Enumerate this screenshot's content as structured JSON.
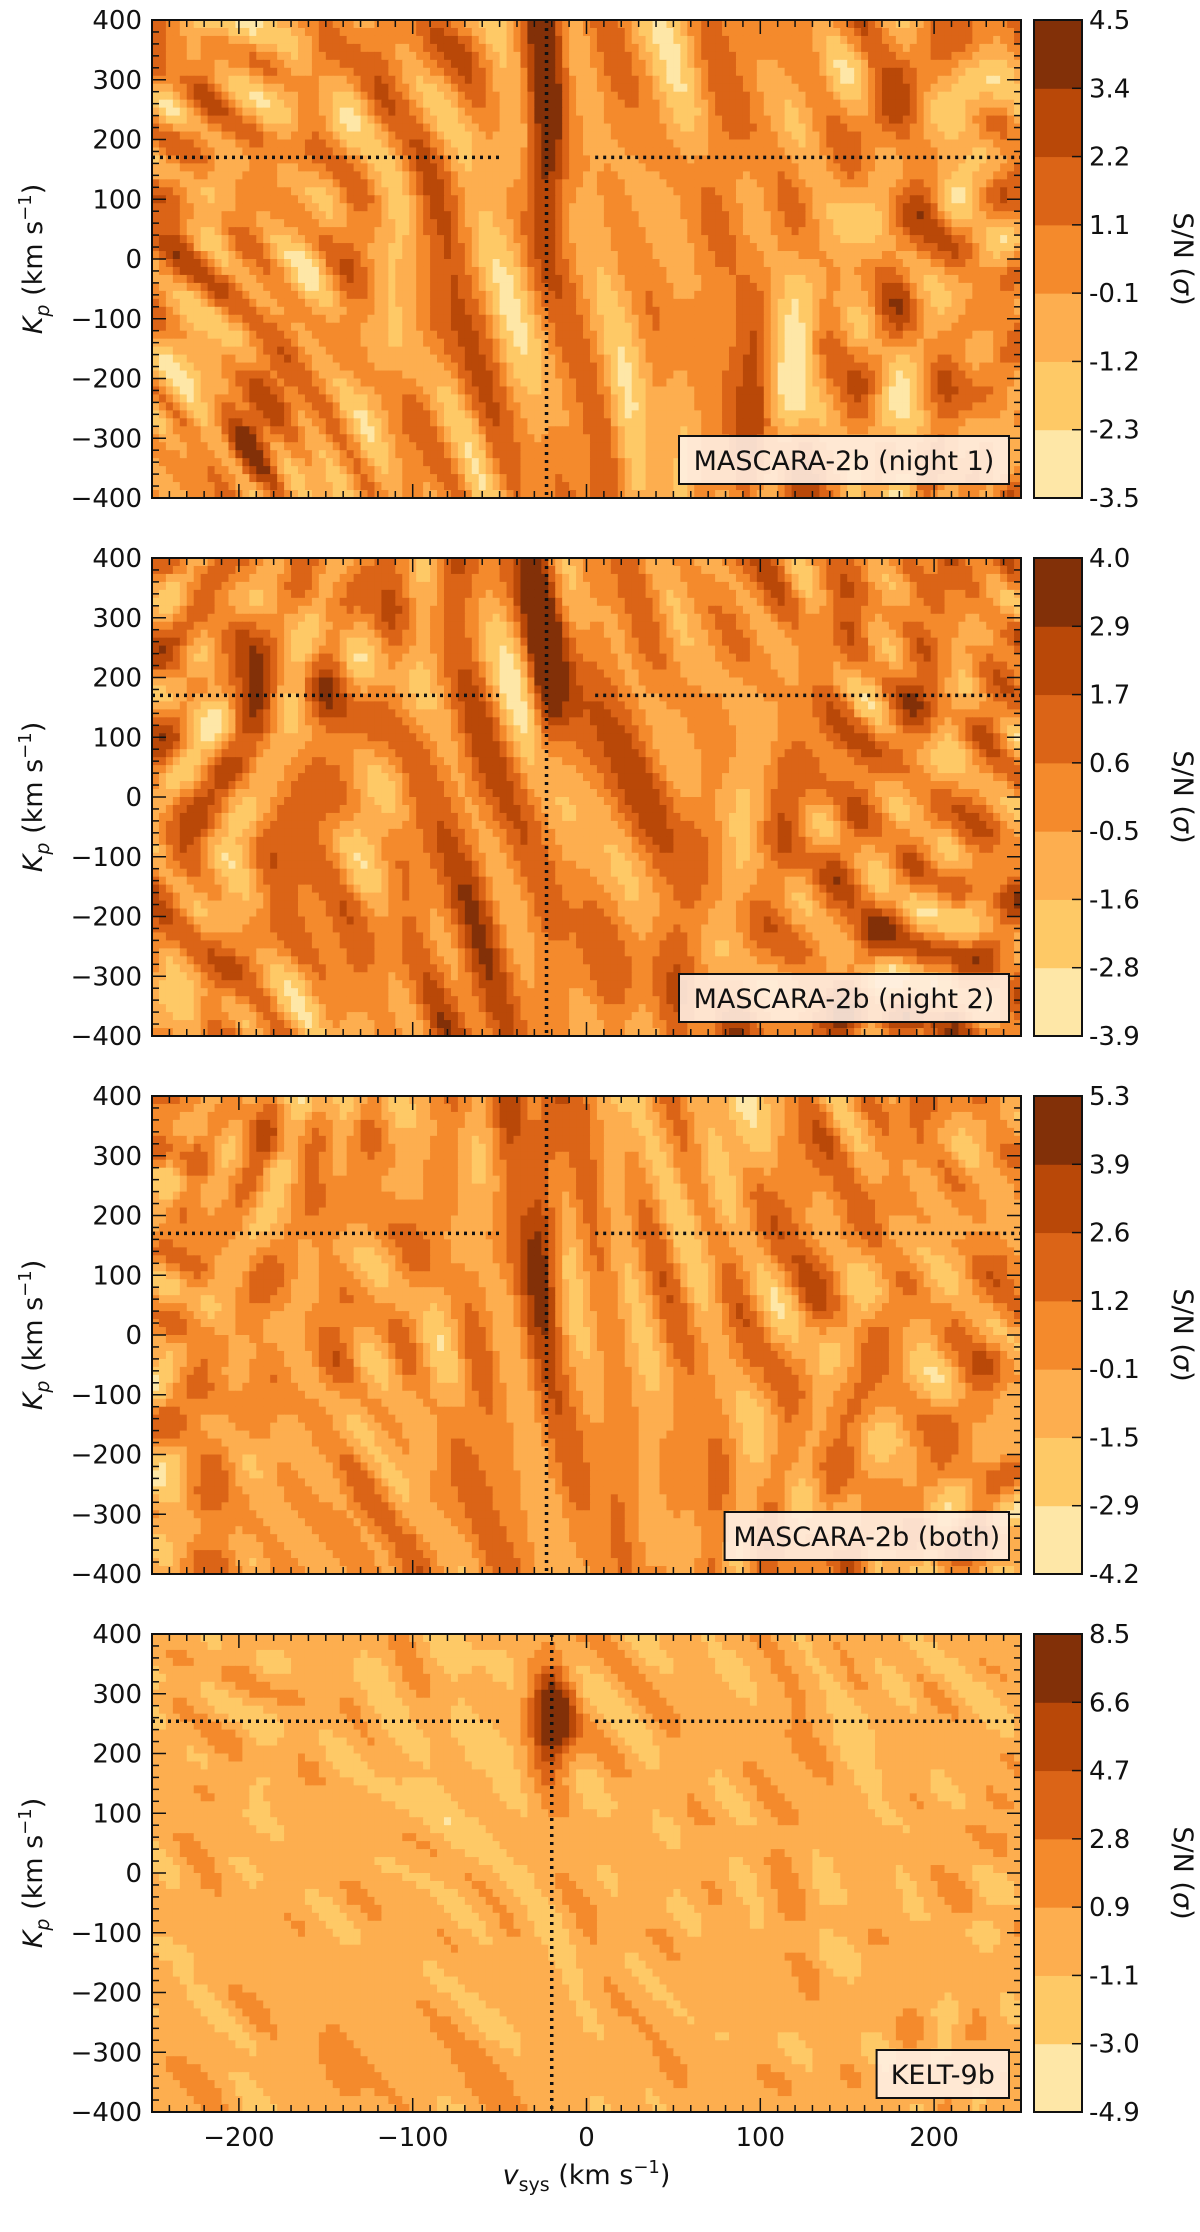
{
  "chart_data": [
    {
      "type": "heatmap",
      "panel_label": "MASCARA-2b (night 1)",
      "xlabel": "v_sys (km s⁻¹)",
      "ylabel": "K_p (km s⁻¹)",
      "colorbar_label": "S/N (σ)",
      "xlim": [
        -250,
        250
      ],
      "ylim": [
        -400,
        400
      ],
      "xticks": [
        -200,
        -100,
        0,
        100,
        200
      ],
      "yticks": [
        -400,
        -300,
        -200,
        -100,
        0,
        100,
        200,
        300,
        400
      ],
      "colorbar_ticks": [
        "-3.5",
        "-2.3",
        "-1.2",
        "-0.1",
        "1.1",
        "2.2",
        "3.4",
        "4.5"
      ],
      "marker_vsys": -23,
      "marker_kp": 170,
      "peak_snr": 4.5
    },
    {
      "type": "heatmap",
      "panel_label": "MASCARA-2b (night 2)",
      "xlabel": "v_sys (km s⁻¹)",
      "ylabel": "K_p (km s⁻¹)",
      "colorbar_label": "S/N (σ)",
      "xlim": [
        -250,
        250
      ],
      "ylim": [
        -400,
        400
      ],
      "xticks": [
        -200,
        -100,
        0,
        100,
        200
      ],
      "yticks": [
        -400,
        -300,
        -200,
        -100,
        0,
        100,
        200,
        300,
        400
      ],
      "colorbar_ticks": [
        "-3.9",
        "-2.8",
        "-1.6",
        "-0.5",
        "0.6",
        "1.7",
        "2.9",
        "4.0"
      ],
      "marker_vsys": -23,
      "marker_kp": 170,
      "peak_snr": 4.0
    },
    {
      "type": "heatmap",
      "panel_label": "MASCARA-2b (both)",
      "xlabel": "v_sys (km s⁻¹)",
      "ylabel": "K_p (km s⁻¹)",
      "colorbar_label": "S/N (σ)",
      "xlim": [
        -250,
        250
      ],
      "ylim": [
        -400,
        400
      ],
      "xticks": [
        -200,
        -100,
        0,
        100,
        200
      ],
      "yticks": [
        -400,
        -300,
        -200,
        -100,
        0,
        100,
        200,
        300,
        400
      ],
      "colorbar_ticks": [
        "-4.2",
        "-2.9",
        "-1.5",
        "-0.1",
        "1.2",
        "2.6",
        "3.9",
        "5.3"
      ],
      "marker_vsys": -23,
      "marker_kp": 170,
      "peak_snr": 5.3
    },
    {
      "type": "heatmap",
      "panel_label": "KELT-9b",
      "xlabel": "v_sys (km s⁻¹)",
      "ylabel": "K_p (km s⁻¹)",
      "colorbar_label": "S/N (σ)",
      "xlim": [
        -250,
        250
      ],
      "ylim": [
        -400,
        400
      ],
      "xticks": [
        -200,
        -100,
        0,
        100,
        200
      ],
      "yticks": [
        -400,
        -300,
        -200,
        -100,
        0,
        100,
        200,
        300,
        400
      ],
      "colorbar_ticks": [
        "-4.9",
        "-3.0",
        "-1.1",
        "0.9",
        "2.8",
        "4.7",
        "6.6",
        "8.5"
      ],
      "marker_vsys": -20,
      "marker_kp": 254,
      "peak_snr": 8.5
    }
  ],
  "colormap": [
    "#fff7d4",
    "#fee7a7",
    "#fec966",
    "#fdae4f",
    "#f48a2c",
    "#db6417",
    "#b94808",
    "#823008"
  ]
}
